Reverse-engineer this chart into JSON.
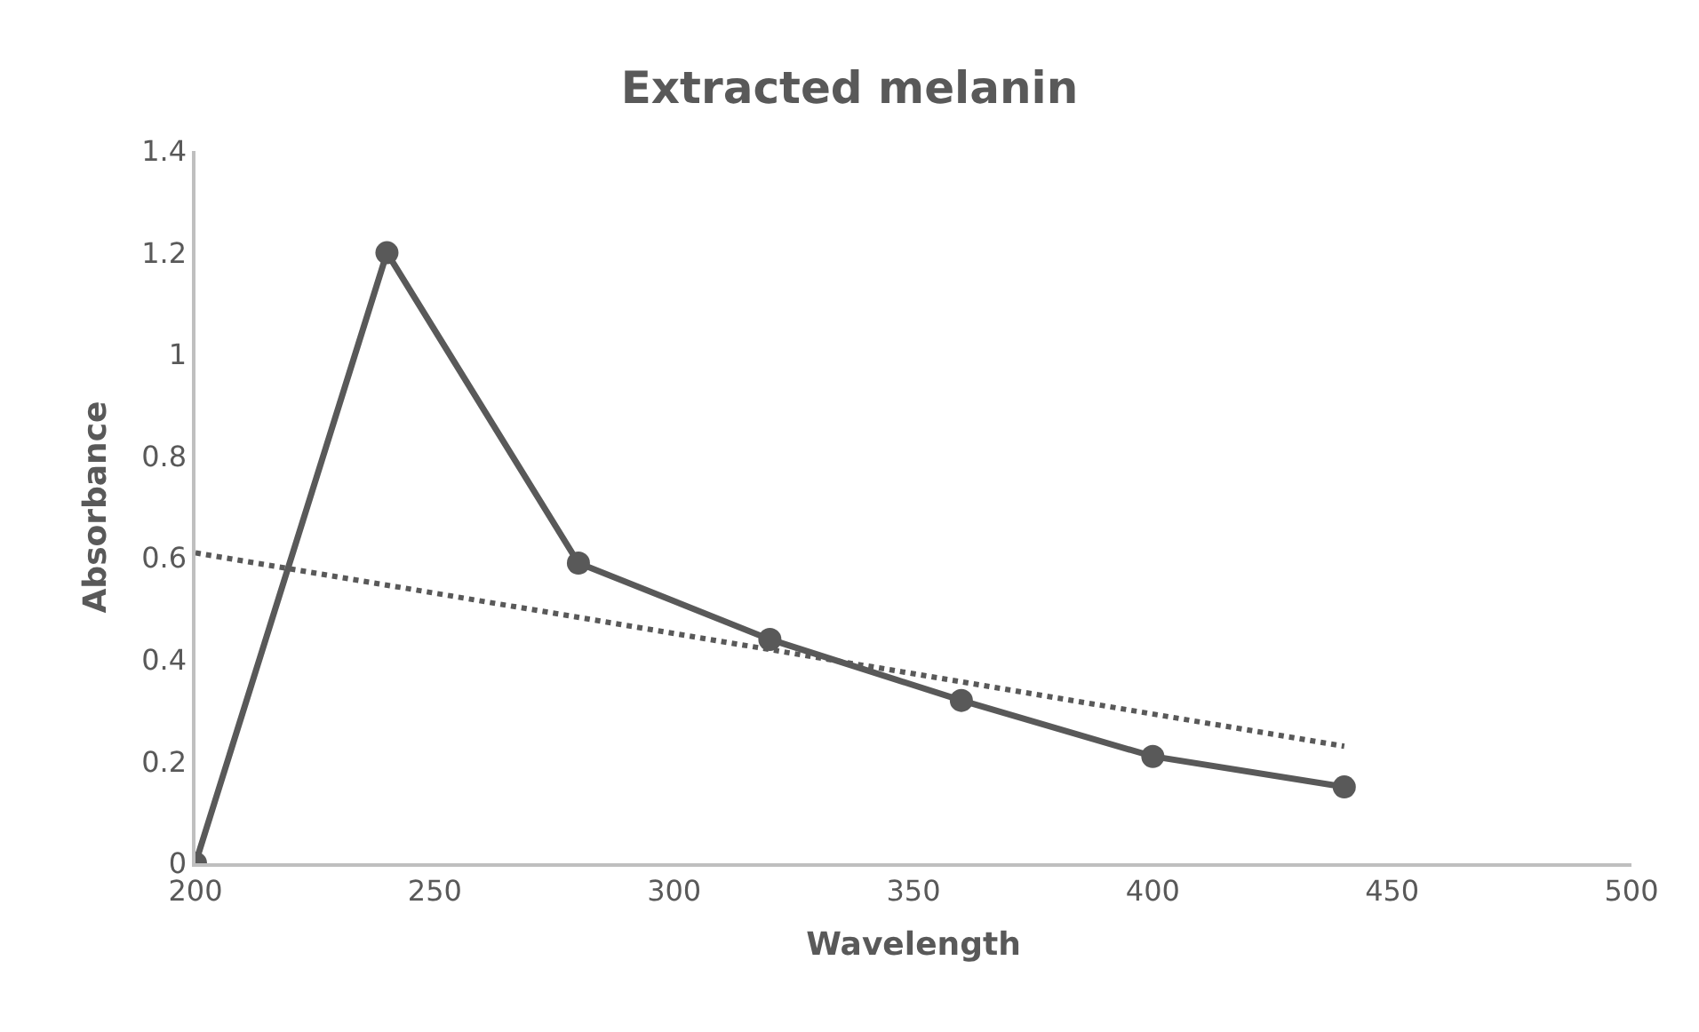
{
  "chart_data": {
    "type": "line",
    "title": "Extracted melanin",
    "xlabel": "Wavelength",
    "ylabel": "Absorbance",
    "x": [
      200,
      240,
      280,
      320,
      360,
      400,
      440
    ],
    "series": [
      {
        "color": "#595959",
        "values": [
          0,
          1.2,
          0.59,
          0.44,
          0.32,
          0.21,
          0.15
        ],
        "marker": "circle",
        "line_style": "solid"
      },
      {
        "type": "line",
        "x": [
          200,
          440
        ],
        "color": "#595959",
        "values": [
          0.61,
          0.23
        ],
        "marker": "none",
        "line_style": "dotted"
      }
    ],
    "xlim": [
      200,
      500
    ],
    "xticks": [
      200,
      250,
      300,
      350,
      400,
      450,
      500
    ],
    "ylim": [
      0,
      1.4
    ],
    "yticks": [
      0,
      0.2,
      0.4,
      0.6,
      0.8,
      1,
      1.2,
      1.4
    ]
  }
}
